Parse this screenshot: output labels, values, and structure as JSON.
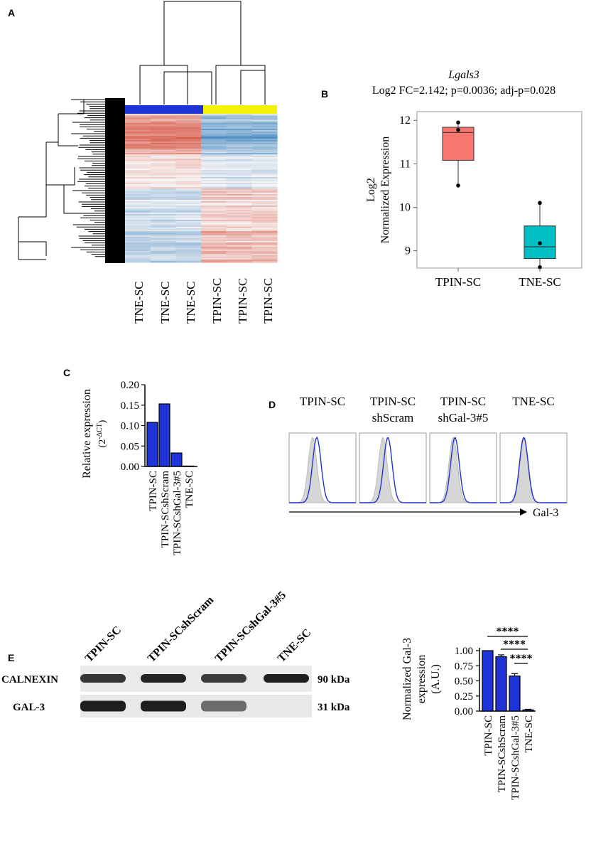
{
  "panels": {
    "a": "A",
    "b": "B",
    "c": "C",
    "d": "D",
    "e": "E"
  },
  "colors": {
    "blue": "#1f34d6",
    "yellow": "#f5f20a",
    "red_box": "#f8766d",
    "teal_box": "#00bfc4",
    "hist_line": "#2233cc",
    "hist_fill": "#d6d6d6"
  },
  "panel_a": {
    "type": "heatmap",
    "column_labels": [
      "TNE-SC",
      "TNE-SC",
      "TNE-SC",
      "TPIN-SC",
      "TPIN-SC",
      "TPIN-SC"
    ],
    "column_groups": [
      "TNE-SC",
      "TPIN-SC"
    ]
  },
  "chart_data": [
    {
      "type": "box",
      "title_gene": "Lgals3",
      "subtitle": "Log2 FC=2.142; p=0.0036; adj-p=0.028",
      "ylabel_line1": "Log2",
      "ylabel_line2": "Normalized Expression",
      "categories": [
        "TPIN-SC",
        "TNE-SC"
      ],
      "boxes": [
        {
          "name": "TPIN-SC",
          "min": 10.5,
          "q1": 11.08,
          "median": 11.72,
          "q3": 11.84,
          "max": 11.95,
          "points": [
            11.95,
            11.78,
            10.5
          ]
        },
        {
          "name": "TNE-SC",
          "min": 8.62,
          "q1": 8.82,
          "median": 9.09,
          "q3": 9.57,
          "max": 10.1,
          "points": [
            10.1,
            9.17,
            8.62
          ]
        }
      ],
      "ylim": [
        8.6,
        12.2
      ],
      "yticks": [
        9,
        10,
        11,
        12
      ]
    },
    {
      "type": "bar",
      "ylabel": "Relative expression",
      "ylabel_sub": "(2",
      "ylabel_sup": "-ΔCT",
      "ylabel_close": ")",
      "categories": [
        "TPIN-SC",
        "TPIN-SCshScram",
        "TPIN-SCshGal-3#5",
        "TNE-SC"
      ],
      "values": [
        0.108,
        0.153,
        0.033,
        0.001
      ],
      "ylim": [
        0,
        0.2
      ],
      "yticks": [
        "0.00",
        "0.05",
        "0.10",
        "0.15",
        "0.20"
      ]
    },
    {
      "type": "histogram",
      "panels": [
        {
          "title_line1": "TPIN-SC",
          "title_line2": "",
          "shift": 0.6
        },
        {
          "title_line1": "TPIN-SC",
          "title_line2": "shScram",
          "shift": 0.7
        },
        {
          "title_line1": "TPIN-SC",
          "title_line2": "shGal-3#5",
          "shift": 0.25
        },
        {
          "title_line1": "TNE-SC",
          "title_line2": "",
          "shift": 0.05
        }
      ],
      "xlabel": "Gal-3"
    },
    {
      "type": "bar",
      "ylabel_line1": "Normalized Gal-3",
      "ylabel_line2": "expression",
      "ylabel_line3": "(A.U.)",
      "categories": [
        "TPIN-SC",
        "TPIN-SCshScram",
        "TPIN-SCshGal-3#5",
        "TNE-SC"
      ],
      "values": [
        1.0,
        0.9,
        0.58,
        0.02
      ],
      "errors": [
        0.0,
        0.03,
        0.04,
        0.01
      ],
      "ylim": [
        0,
        1.0
      ],
      "yticks": [
        "0.00",
        "0.25",
        "0.50",
        "0.75",
        "1.00"
      ],
      "significance": [
        {
          "from": 0,
          "to": 3,
          "label": "****"
        },
        {
          "from": 1,
          "to": 3,
          "label": "****"
        },
        {
          "from": 2,
          "to": 3,
          "label": "****"
        }
      ]
    }
  ],
  "western": {
    "lanes": [
      "TPIN-SC",
      "TPIN-SCshScram",
      "TPIN-SCshGal-3#5",
      "TNE-SC"
    ],
    "rows": [
      {
        "name": "CALNEXIN",
        "size": "90 kDa",
        "intensities": [
          0.8,
          0.95,
          0.75,
          1.0
        ]
      },
      {
        "name": "GAL-3",
        "size": "31 kDa",
        "intensities": [
          1.0,
          1.0,
          0.35,
          0.0
        ]
      }
    ]
  }
}
